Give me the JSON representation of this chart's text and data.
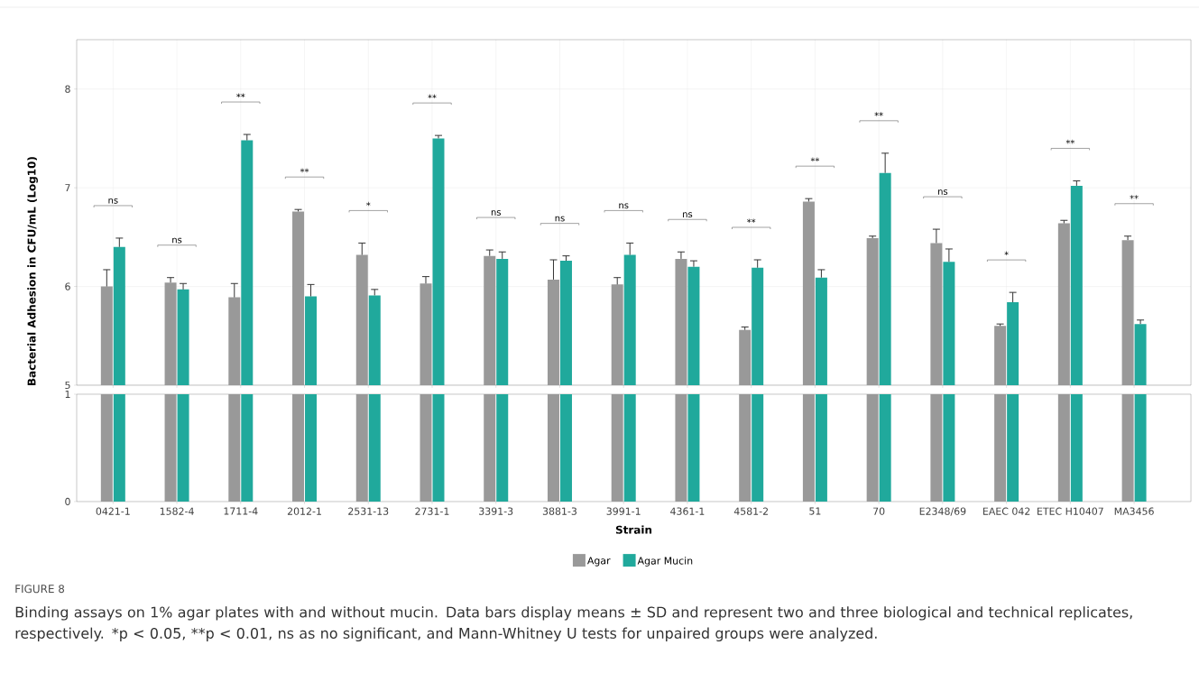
{
  "chart_data": [
    {
      "type": "bar",
      "ylabel": "Bacterial Adhesion in CFU/mL (Log10)",
      "categories": [
        null,
        null,
        null,
        null,
        null,
        null,
        null,
        null,
        null,
        null,
        null,
        null,
        null,
        null,
        null,
        null,
        null
      ],
      "series": [
        {
          "color": "#999999",
          "values": [
            6.0,
            6.04,
            5.89,
            6.76,
            6.32,
            6.03,
            6.31,
            6.07,
            6.02,
            6.28,
            5.56,
            6.86,
            6.49,
            6.44,
            5.6,
            6.64,
            6.47
          ],
          "errors": [
            0.17,
            0.05,
            0.14,
            0.02,
            0.12,
            0.07,
            0.06,
            0.2,
            0.07,
            0.07,
            0.03,
            0.03,
            0.02,
            0.14,
            0.02,
            0.03,
            0.04
          ]
        },
        {
          "color": "#20a99c",
          "values": [
            6.4,
            5.97,
            7.48,
            5.9,
            5.91,
            7.5,
            6.28,
            6.26,
            6.32,
            6.2,
            6.19,
            6.09,
            7.15,
            6.25,
            5.84,
            7.02,
            5.62
          ],
          "errors": [
            0.09,
            0.06,
            0.06,
            0.12,
            0.06,
            0.03,
            0.07,
            0.05,
            0.12,
            0.06,
            0.08,
            0.08,
            0.2,
            0.13,
            0.1,
            0.05,
            0.04
          ]
        }
      ],
      "ylim": [
        5,
        8.5
      ],
      "yticks": [
        5,
        6,
        7,
        8
      ],
      "grid": true,
      "tick_labels": "y",
      "annotations": [
        "ns",
        "ns",
        "**",
        "**",
        "*",
        "**",
        "ns",
        "ns",
        "ns",
        "ns",
        "**",
        "**",
        "**",
        "ns",
        "*",
        "**",
        "**"
      ]
    },
    {
      "type": "bar",
      "title": "FIGURE 8",
      "xlabel": "Strain",
      "categories": [
        "0421-1",
        "1582-4",
        "1711-4",
        "2012-1",
        "2531-13",
        "2731-1",
        "3391-3",
        "3881-3",
        "3991-1",
        "4361-1",
        "4581-2",
        "51",
        "70",
        "E2348/69",
        "EAEC 042",
        "ETEC H10407",
        "MA3456"
      ],
      "series": [
        {
          "name": "Agar",
          "color": "#999999",
          "values": [
            1,
            1,
            1,
            1,
            1,
            1,
            1,
            1,
            1,
            1,
            1,
            1,
            1,
            1,
            1,
            1,
            1
          ]
        },
        {
          "name": "Agar Mucin",
          "color": "#20a99c",
          "values": [
            1,
            1,
            1,
            1,
            1,
            1,
            1,
            1,
            1,
            1,
            1,
            1,
            1,
            1,
            1,
            1,
            1
          ]
        }
      ],
      "ylim": [
        0,
        1
      ],
      "yticks": [
        0,
        1
      ],
      "legend": "bottom",
      "annotations": [
        "Binding assays on 1% agar plates with and without mucin. Data bars display means ± SD and represent two and three biological and technical replicates, respectively. *p < 0.05, **p < 0.01, ns as no significant, and Mann-Whitney U tests for unpaired groups were analyzed."
      ]
    }
  ]
}
